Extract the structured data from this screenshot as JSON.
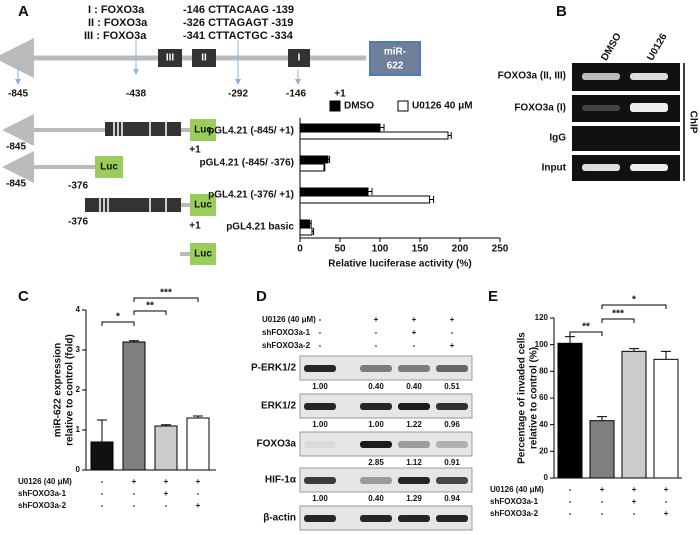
{
  "panel_a": {
    "label": "A",
    "sites": [
      "I : FOXO3a",
      "II : FOXO3a",
      "III : FOXO3a"
    ],
    "site_seqs": [
      "-146  CTTACAAG  -139",
      "-326  CTTAGAGT  -319",
      "-341  CTTACTGC  -334"
    ],
    "site_marks": [
      "III",
      "II",
      "I"
    ],
    "mirna": [
      "miR-",
      "622"
    ],
    "positions": [
      "-845",
      "-438",
      "-292",
      "-146",
      "+1"
    ],
    "constructs": [
      [
        "-845",
        "+1"
      ],
      [
        "-845",
        "-376"
      ],
      [
        "-376",
        "+1"
      ],
      []
    ],
    "reporter": "Luc"
  },
  "panel_b": {
    "label": "B",
    "columns": [
      "DMSO",
      "U0126"
    ],
    "rows": [
      "FOXO3a (II, III)",
      "FOXO3a (I)",
      "IgG",
      "Input"
    ],
    "side_label": "ChIP"
  },
  "panel_d": {
    "label": "D",
    "conditions": [
      {
        "label": "U0126 (40 μM)",
        "marks": [
          "-",
          "+",
          "+",
          "+"
        ]
      },
      {
        "label": "shFOXO3a-1",
        "marks": [
          "-",
          "-",
          "+",
          "-"
        ]
      },
      {
        "label": "shFOXO3a-2",
        "marks": [
          "-",
          "-",
          "-",
          "+"
        ]
      }
    ],
    "blots": [
      {
        "name": "P-ERK1/2",
        "quant": [
          "1.00",
          "0.40",
          "0.40",
          "0.51"
        ]
      },
      {
        "name": "ERK1/2",
        "quant": [
          "1.00",
          "1.00",
          "1.22",
          "0.96"
        ]
      },
      {
        "name": "FOXO3a",
        "quant": [
          null,
          "2.85",
          "1.12",
          "0.91"
        ]
      },
      {
        "name": "HIF-1α",
        "quant": [
          "1.00",
          "0.40",
          "1.29",
          "0.94"
        ]
      },
      {
        "name": "β-actin",
        "quant": []
      }
    ]
  },
  "chart_data": [
    {
      "type": "bar",
      "orientation": "horizontal",
      "categories": [
        "pGL4.21 (-845/ +1)",
        "pGL4.21 (-845/ -376)",
        "pGL4.21 (-376/ +1)",
        "pGL4.21 basic"
      ],
      "series": [
        {
          "name": "DMSO",
          "color": "#000000",
          "values": [
            100,
            35,
            85,
            12
          ],
          "errors": [
            5,
            2,
            5,
            2
          ]
        },
        {
          "name": "U0126 40 μM",
          "color": "#ffffff",
          "values": [
            185,
            30,
            162,
            15
          ],
          "errors": [
            4,
            1,
            5,
            2
          ]
        }
      ],
      "xlim": [
        0,
        250
      ],
      "xticks": [
        0,
        50,
        100,
        150,
        200,
        250
      ],
      "xlabel": "Relative luciferase activity (%)"
    },
    {
      "type": "bar",
      "label": "C",
      "ylabel": [
        "miR-622 expression",
        "relative to control (fold)"
      ],
      "values": [
        0.7,
        3.2,
        1.1,
        1.3
      ],
      "errors": [
        0.55,
        0.03,
        0.03,
        0.05
      ],
      "colors": [
        "#111111",
        "#808080",
        "#cccccc",
        "#ffffff"
      ],
      "ylim": [
        0,
        4
      ],
      "yticks": [
        0,
        1,
        2,
        3,
        4
      ],
      "significance": [
        "*",
        "**",
        "***"
      ],
      "conditions": [
        {
          "label": "U0126 (40 μM)",
          "marks": [
            "-",
            "+",
            "+",
            "+"
          ]
        },
        {
          "label": "shFOXO3a-1",
          "marks": [
            "-",
            "-",
            "+",
            "-"
          ]
        },
        {
          "label": "shFOXO3a-2",
          "marks": [
            "-",
            "-",
            "-",
            "+"
          ]
        }
      ]
    },
    {
      "type": "bar",
      "label": "E",
      "ylabel": [
        "Percentage of invaded cells",
        "relative to control (%)"
      ],
      "values": [
        101,
        43,
        95,
        89
      ],
      "errors": [
        5,
        3,
        2,
        6
      ],
      "colors": [
        "#000000",
        "#808080",
        "#cccccc",
        "#ffffff"
      ],
      "ylim": [
        0,
        120
      ],
      "yticks": [
        0,
        20,
        40,
        60,
        80,
        100,
        120
      ],
      "significance": [
        "**",
        "***",
        "*"
      ],
      "conditions": [
        {
          "label": "U0126 (40 μM)",
          "marks": [
            "-",
            "+",
            "+",
            "+"
          ]
        },
        {
          "label": "shFOXO3a-1",
          "marks": [
            "-",
            "-",
            "+",
            "-"
          ]
        },
        {
          "label": "shFOXO3a-2",
          "marks": [
            "-",
            "-",
            "-",
            "+"
          ]
        }
      ]
    }
  ]
}
